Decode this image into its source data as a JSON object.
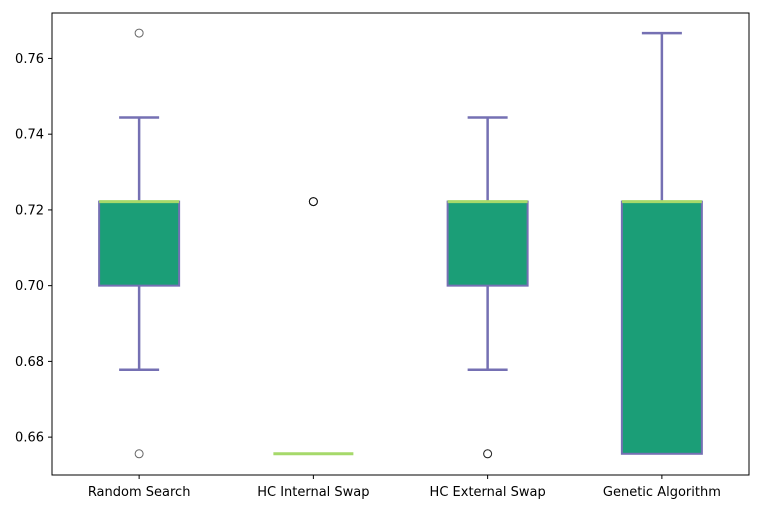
{
  "chart_data": {
    "type": "box",
    "title": "",
    "xlabel": "",
    "ylabel": "",
    "ylim": [
      0.65,
      0.772
    ],
    "yticks": [
      "0.66",
      "0.68",
      "0.70",
      "0.72",
      "0.74",
      "0.76"
    ],
    "categories": [
      "Random Search",
      "HC Internal Swap",
      "HC External Swap",
      "Genetic Algorithm"
    ],
    "boxes": [
      {
        "q1": 0.7,
        "median": 0.7222,
        "q3": 0.7222,
        "whisker_low": 0.6778,
        "whisker_high": 0.7444,
        "outliers": [
          0.6556,
          0.7667
        ]
      },
      {
        "q1": 0.6556,
        "median": 0.6556,
        "q3": 0.6556,
        "whisker_low": 0.6556,
        "whisker_high": 0.6556,
        "outliers": [
          0.7222,
          0.7222,
          0.7222
        ]
      },
      {
        "q1": 0.7,
        "median": 0.7222,
        "q3": 0.7222,
        "whisker_low": 0.6778,
        "whisker_high": 0.7444,
        "outliers": [
          0.6556,
          0.6556
        ]
      },
      {
        "q1": 0.6556,
        "median": 0.7222,
        "q3": 0.7222,
        "whisker_low": 0.6556,
        "whisker_high": 0.7667,
        "outliers": []
      }
    ],
    "colors": {
      "box_fill": "#1b9e77",
      "box_edge": "#7570b3",
      "whisker": "#7570b3",
      "median": "#a6d96a",
      "outlier_edge": "#000000",
      "axis": "#000000"
    },
    "grid": false,
    "legend": "none"
  }
}
